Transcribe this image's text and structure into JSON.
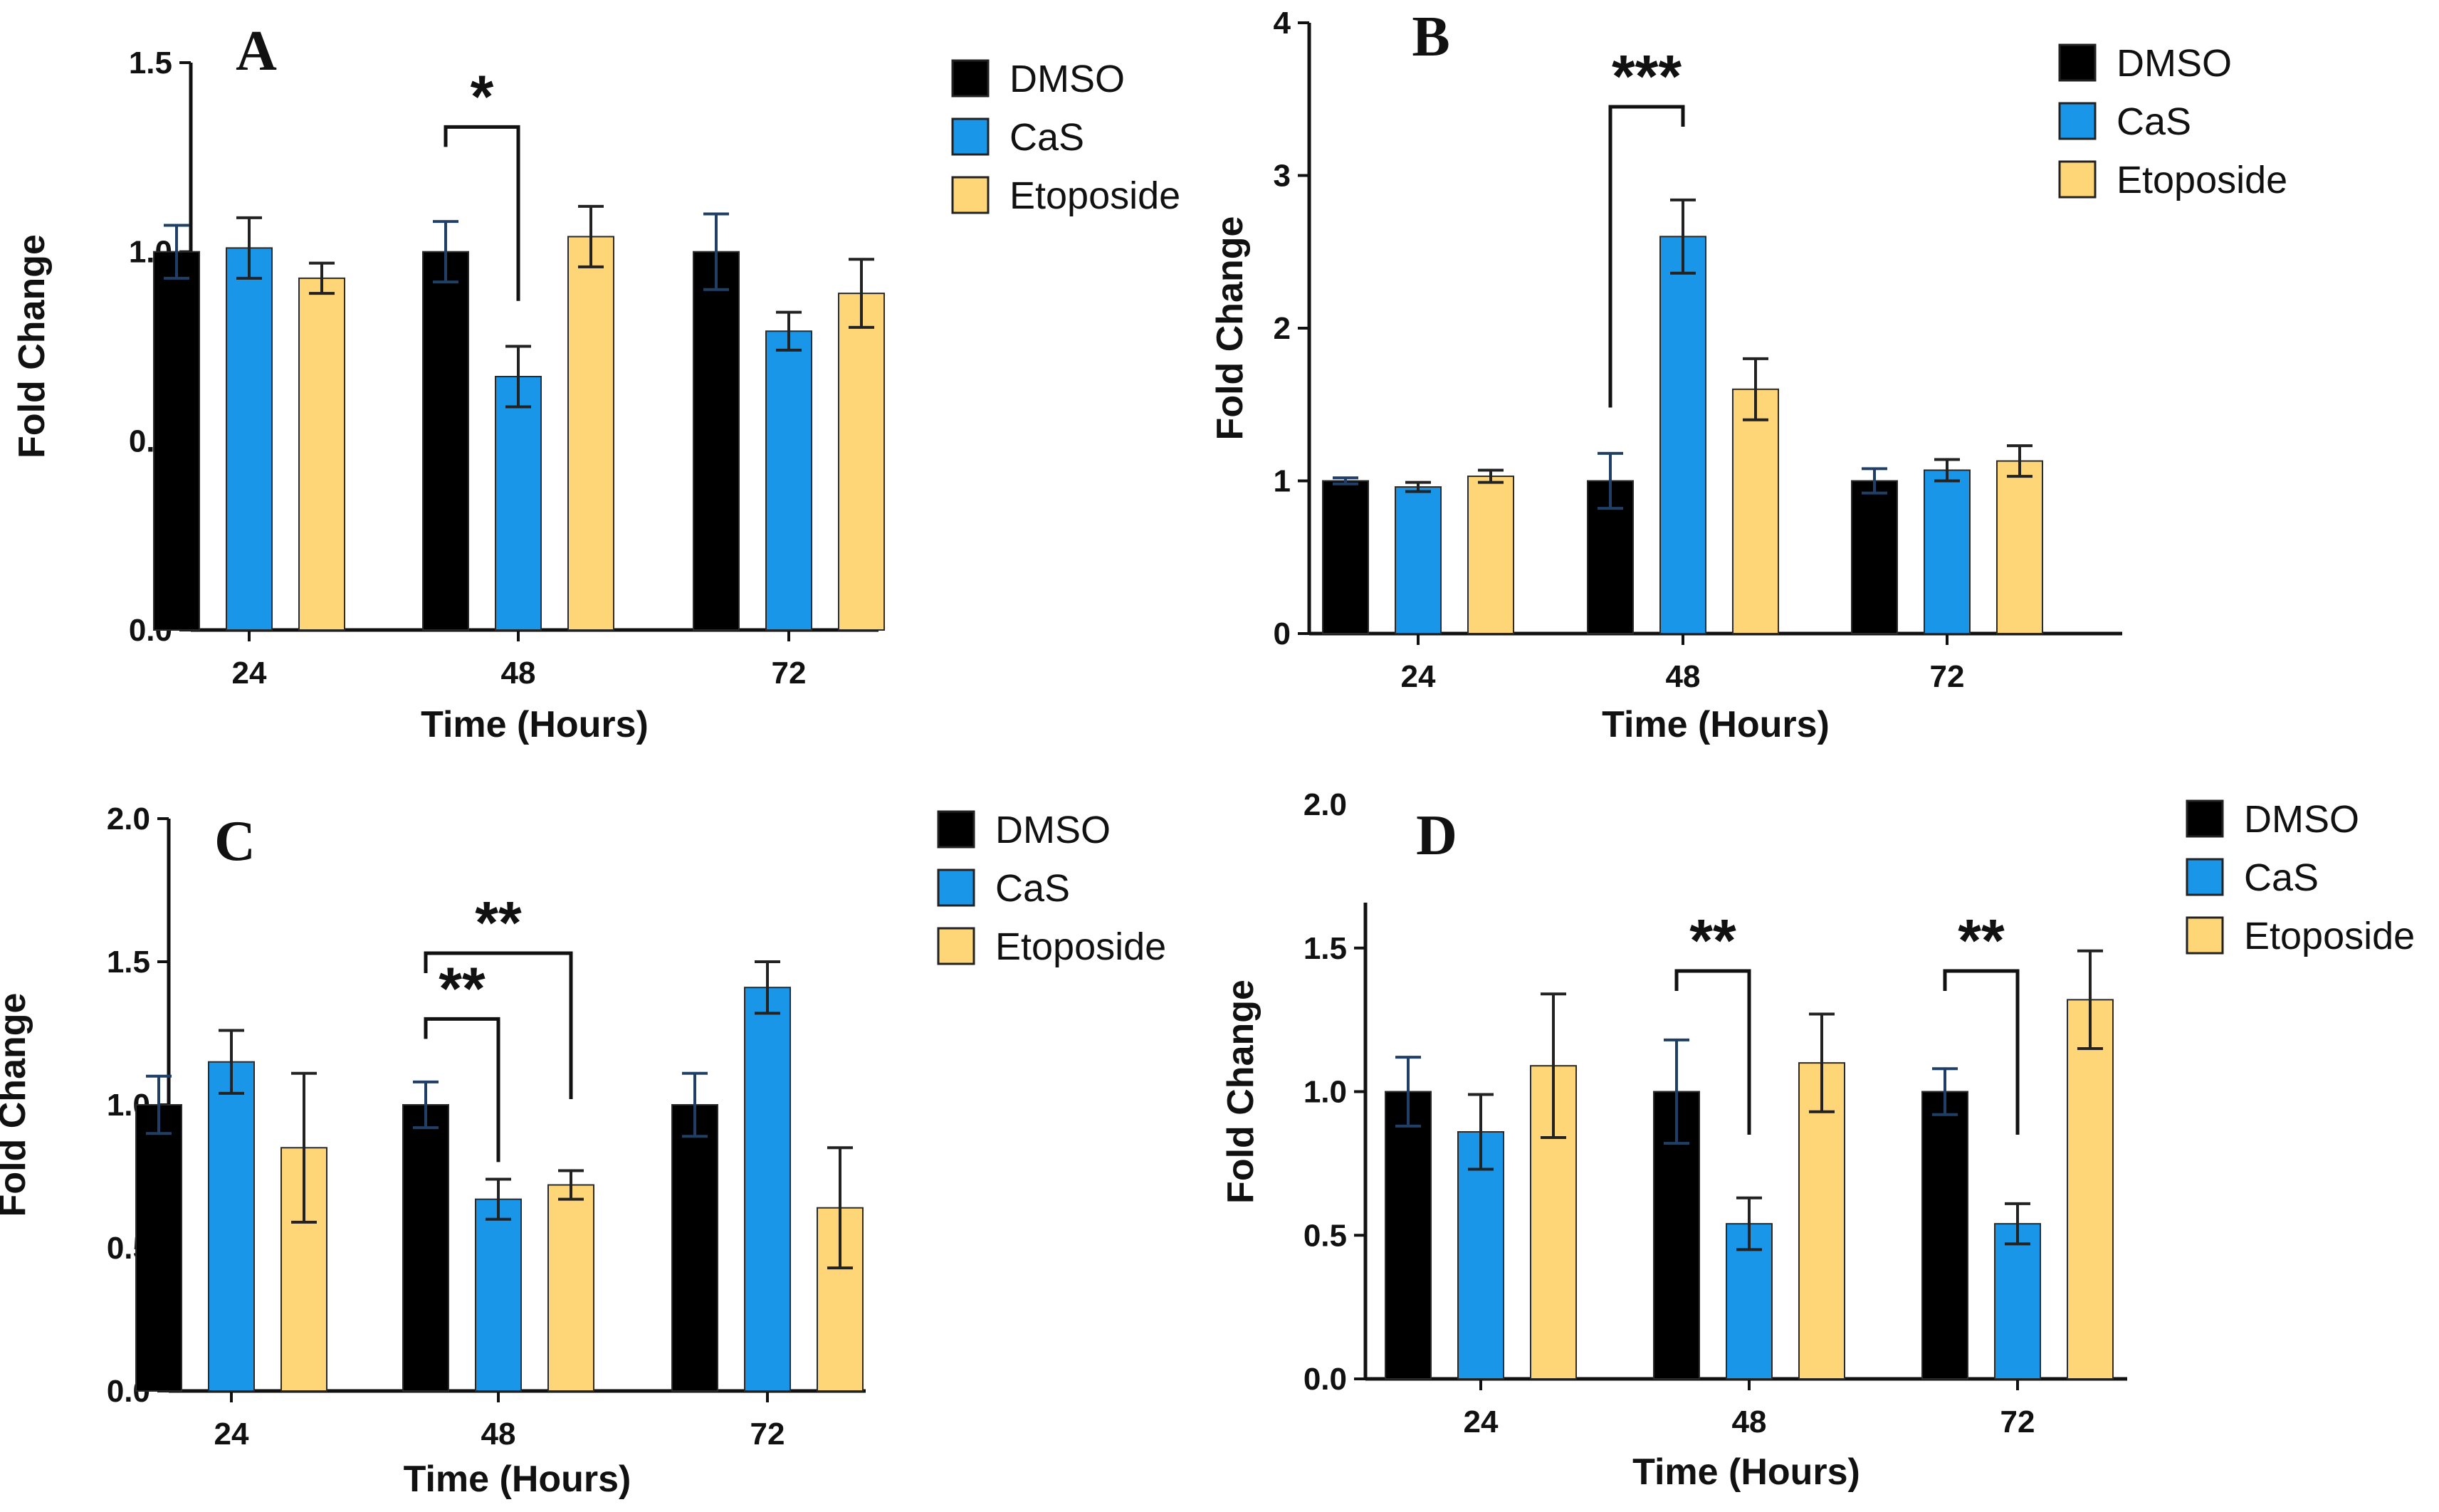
{
  "chart_data": [
    {
      "panel": "A",
      "type": "bar",
      "categories": [
        "24",
        "48",
        "72"
      ],
      "xlabel": "Time (Hours)",
      "ylabel": "Fold Change",
      "ylim": [
        0,
        1.5
      ],
      "yticks": [
        "0.0",
        "0.5",
        "1.0",
        "1.5"
      ],
      "grid": false,
      "legend_position": "top-right",
      "series": [
        {
          "name": "DMSO",
          "values": [
            1.0,
            1.0,
            1.0
          ],
          "errors": [
            0.07,
            0.08,
            0.1
          ]
        },
        {
          "name": "CaS",
          "values": [
            1.01,
            0.67,
            0.79
          ],
          "errors": [
            0.08,
            0.08,
            0.05
          ]
        },
        {
          "name": "Etoposide",
          "values": [
            0.93,
            1.04,
            0.89
          ],
          "errors": [
            0.04,
            0.08,
            0.09
          ]
        }
      ],
      "significance": [
        {
          "label": "*",
          "category": "48",
          "from_series": 0,
          "to_series": 1,
          "bracket_y": 1.33,
          "to_y": 0.87,
          "drop_from": false
        }
      ]
    },
    {
      "panel": "B",
      "type": "bar",
      "categories": [
        "24",
        "48",
        "72"
      ],
      "xlabel": "Time (Hours)",
      "ylabel": "Fold Change",
      "ylim": [
        0,
        4
      ],
      "yticks": [
        "0",
        "1",
        "2",
        "3",
        "4"
      ],
      "grid": false,
      "legend_position": "top-right",
      "series": [
        {
          "name": "DMSO",
          "values": [
            1.0,
            1.0,
            1.0
          ],
          "errors": [
            0.02,
            0.18,
            0.08
          ]
        },
        {
          "name": "CaS",
          "values": [
            0.96,
            2.6,
            1.07
          ],
          "errors": [
            0.03,
            0.24,
            0.07
          ]
        },
        {
          "name": "Etoposide",
          "values": [
            1.03,
            1.6,
            1.13
          ],
          "errors": [
            0.04,
            0.2,
            0.1
          ]
        }
      ],
      "significance": [
        {
          "label": "***",
          "category": "48",
          "from_series": 0,
          "to_series": 1,
          "bracket_y": 3.45,
          "to_y": 2.95,
          "drop_from": true,
          "from_y": 1.48
        }
      ]
    },
    {
      "panel": "C",
      "type": "bar",
      "categories": [
        "24",
        "48",
        "72"
      ],
      "xlabel": "Time (Hours)",
      "ylabel": "Fold Change",
      "ylim": [
        0,
        2.0
      ],
      "yticks": [
        "0.0",
        "0.5",
        "1.0",
        "1.5",
        "2.0"
      ],
      "grid": false,
      "legend_position": "top-right",
      "series": [
        {
          "name": "DMSO",
          "values": [
            1.0,
            1.0,
            1.0
          ],
          "errors": [
            0.1,
            0.08,
            0.11
          ]
        },
        {
          "name": "CaS",
          "values": [
            1.15,
            0.67,
            1.41
          ],
          "errors": [
            0.11,
            0.07,
            0.09
          ]
        },
        {
          "name": "Etoposide",
          "values": [
            0.85,
            0.72,
            0.64
          ],
          "errors": [
            0.26,
            0.05,
            0.21
          ]
        }
      ],
      "significance": [
        {
          "label": "**",
          "category": "48",
          "from_series": 0,
          "to_series": 2,
          "bracket_y": 1.53,
          "to_y": 1.02,
          "drop_from": false
        },
        {
          "label": "**",
          "category": "48",
          "from_series": 0,
          "to_series": 1,
          "bracket_y": 1.3,
          "to_y": 0.8,
          "drop_from": false
        }
      ]
    },
    {
      "panel": "D",
      "type": "bar",
      "categories": [
        "24",
        "48",
        "72"
      ],
      "xlabel": "Time (Hours)",
      "ylabel": "Fold Change",
      "ylim": [
        0,
        2.0
      ],
      "yticks": [
        "0.0",
        "0.5",
        "1.0",
        "1.5",
        "2.0"
      ],
      "grid": false,
      "legend_position": "top-right",
      "series": [
        {
          "name": "DMSO",
          "values": [
            1.0,
            1.0,
            1.0
          ],
          "errors": [
            0.12,
            0.18,
            0.08
          ]
        },
        {
          "name": "CaS",
          "values": [
            0.86,
            0.54,
            0.54
          ],
          "errors": [
            0.13,
            0.09,
            0.07
          ]
        },
        {
          "name": "Etoposide",
          "values": [
            1.09,
            1.1,
            1.32
          ],
          "errors": [
            0.25,
            0.17,
            0.17
          ]
        }
      ],
      "significance": [
        {
          "label": "**",
          "category": "48",
          "from_series": 0,
          "to_series": 1,
          "bracket_y": 1.42,
          "to_y": 0.85,
          "drop_from": false
        },
        {
          "label": "**",
          "category": "72",
          "from_series": 0,
          "to_series": 1,
          "bracket_y": 1.42,
          "to_y": 0.85,
          "drop_from": false
        }
      ]
    }
  ],
  "colors": {
    "DMSO": "#000000",
    "CaS": "#1A96E8",
    "Etoposide": "#FFD677",
    "bar_outline": "#2a2a2a",
    "errorbar_DMSO": "#1f3f66",
    "axis": "#111111"
  }
}
